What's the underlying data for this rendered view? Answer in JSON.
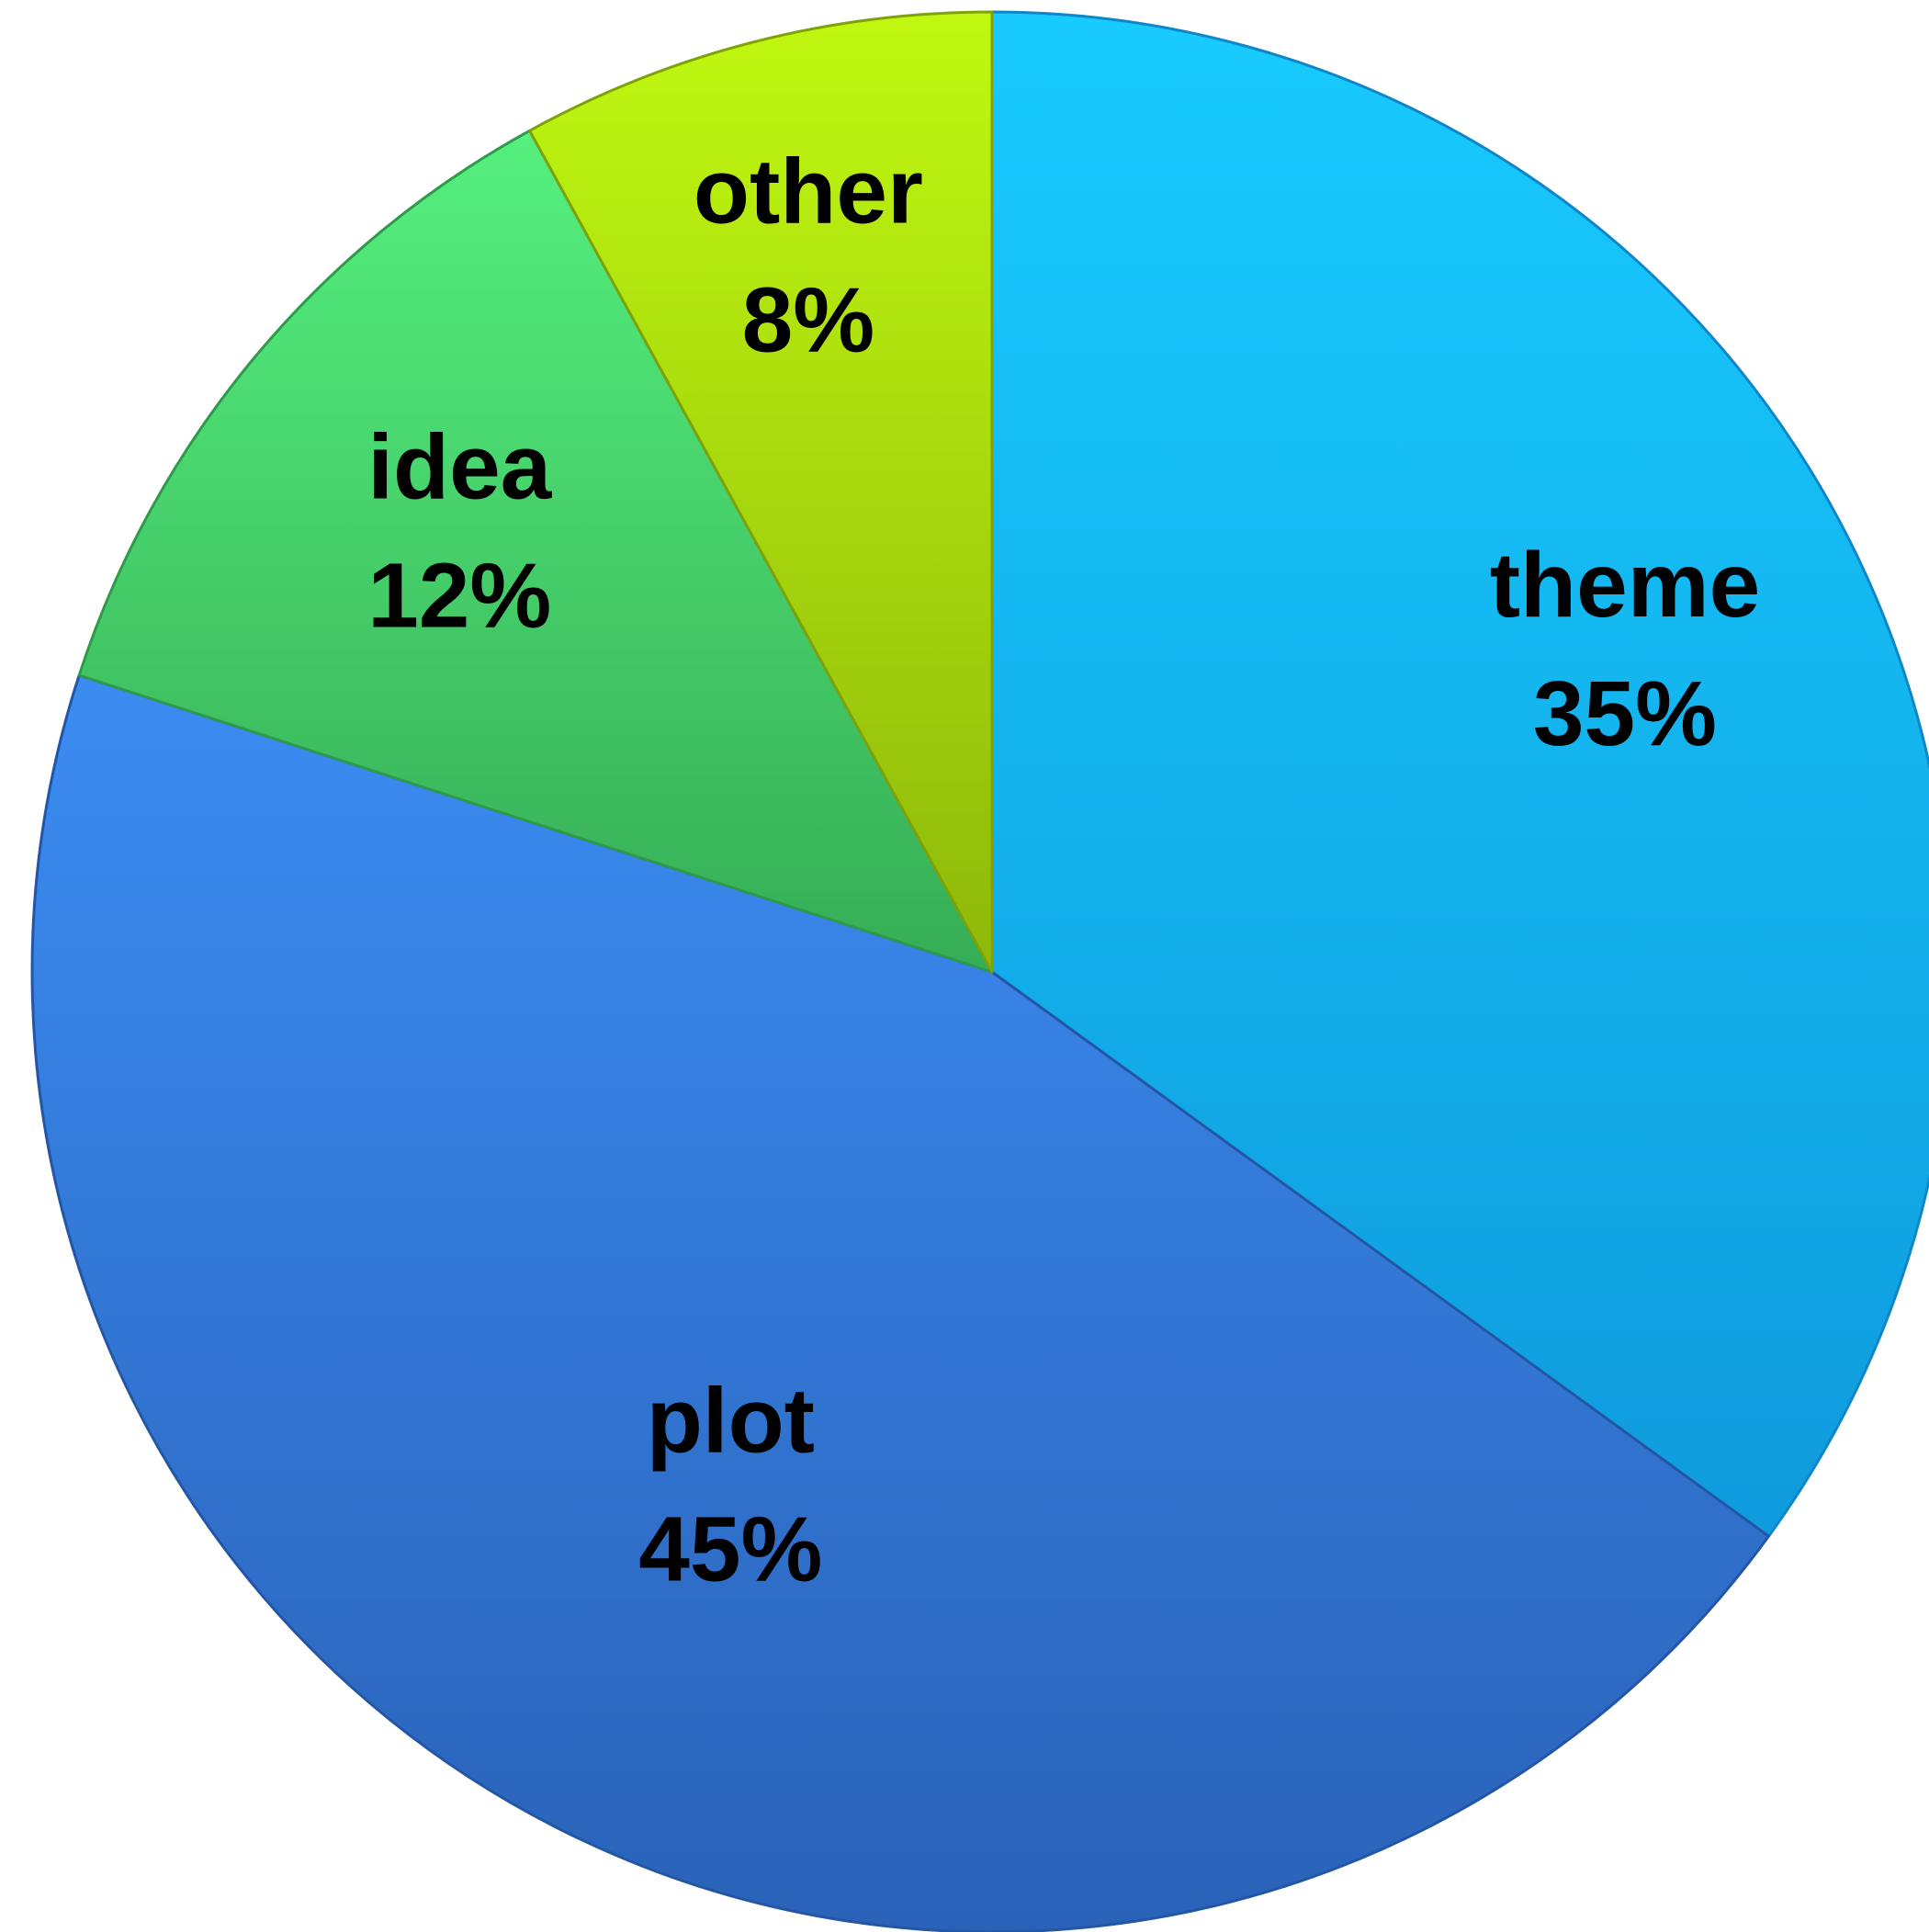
{
  "chart_data": {
    "type": "pie",
    "start_angle_deg": 0,
    "direction": "clockwise",
    "legend": "none",
    "slices": [
      {
        "label": "theme",
        "value": 35,
        "value_label": "35%",
        "color_top": "#18cbff",
        "color_bottom": "#0f9bdd",
        "edge": "#0f86c8"
      },
      {
        "label": "plot",
        "value": 45,
        "value_label": "45%",
        "color_top": "#3b8cf2",
        "color_bottom": "#2a62b8",
        "edge": "#2456a6"
      },
      {
        "label": "idea",
        "value": 12,
        "value_label": "12%",
        "color_top": "#55f07e",
        "color_bottom": "#36ad56",
        "edge": "#2f9a4b"
      },
      {
        "label": "other",
        "value": 8,
        "value_label": "8%",
        "color_top": "#c0f811",
        "color_bottom": "#8fb80a",
        "edge": "#7fa208"
      }
    ]
  }
}
